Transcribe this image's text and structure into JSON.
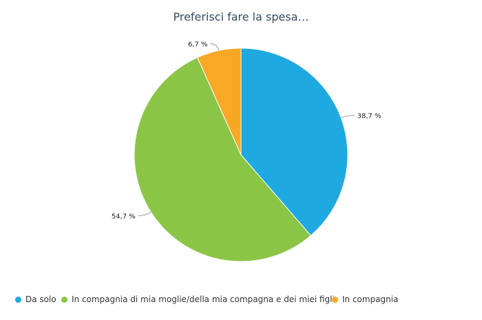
{
  "chart_data": {
    "type": "pie",
    "title": "Preferisci fare la spesa…",
    "slices": [
      {
        "name": "Da solo",
        "value": 38.7,
        "label": "38,7 %",
        "color": "#1fa9e1"
      },
      {
        "name": "In compagnia di mia moglie/della mia compagna e dei miei figli",
        "value": 54.7,
        "label": "54,7 %",
        "color": "#8bc546"
      },
      {
        "name": "In compagnia",
        "value": 6.7,
        "label": "6,7 %",
        "color": "#f9a825"
      }
    ],
    "legend_position": "bottom-left"
  }
}
